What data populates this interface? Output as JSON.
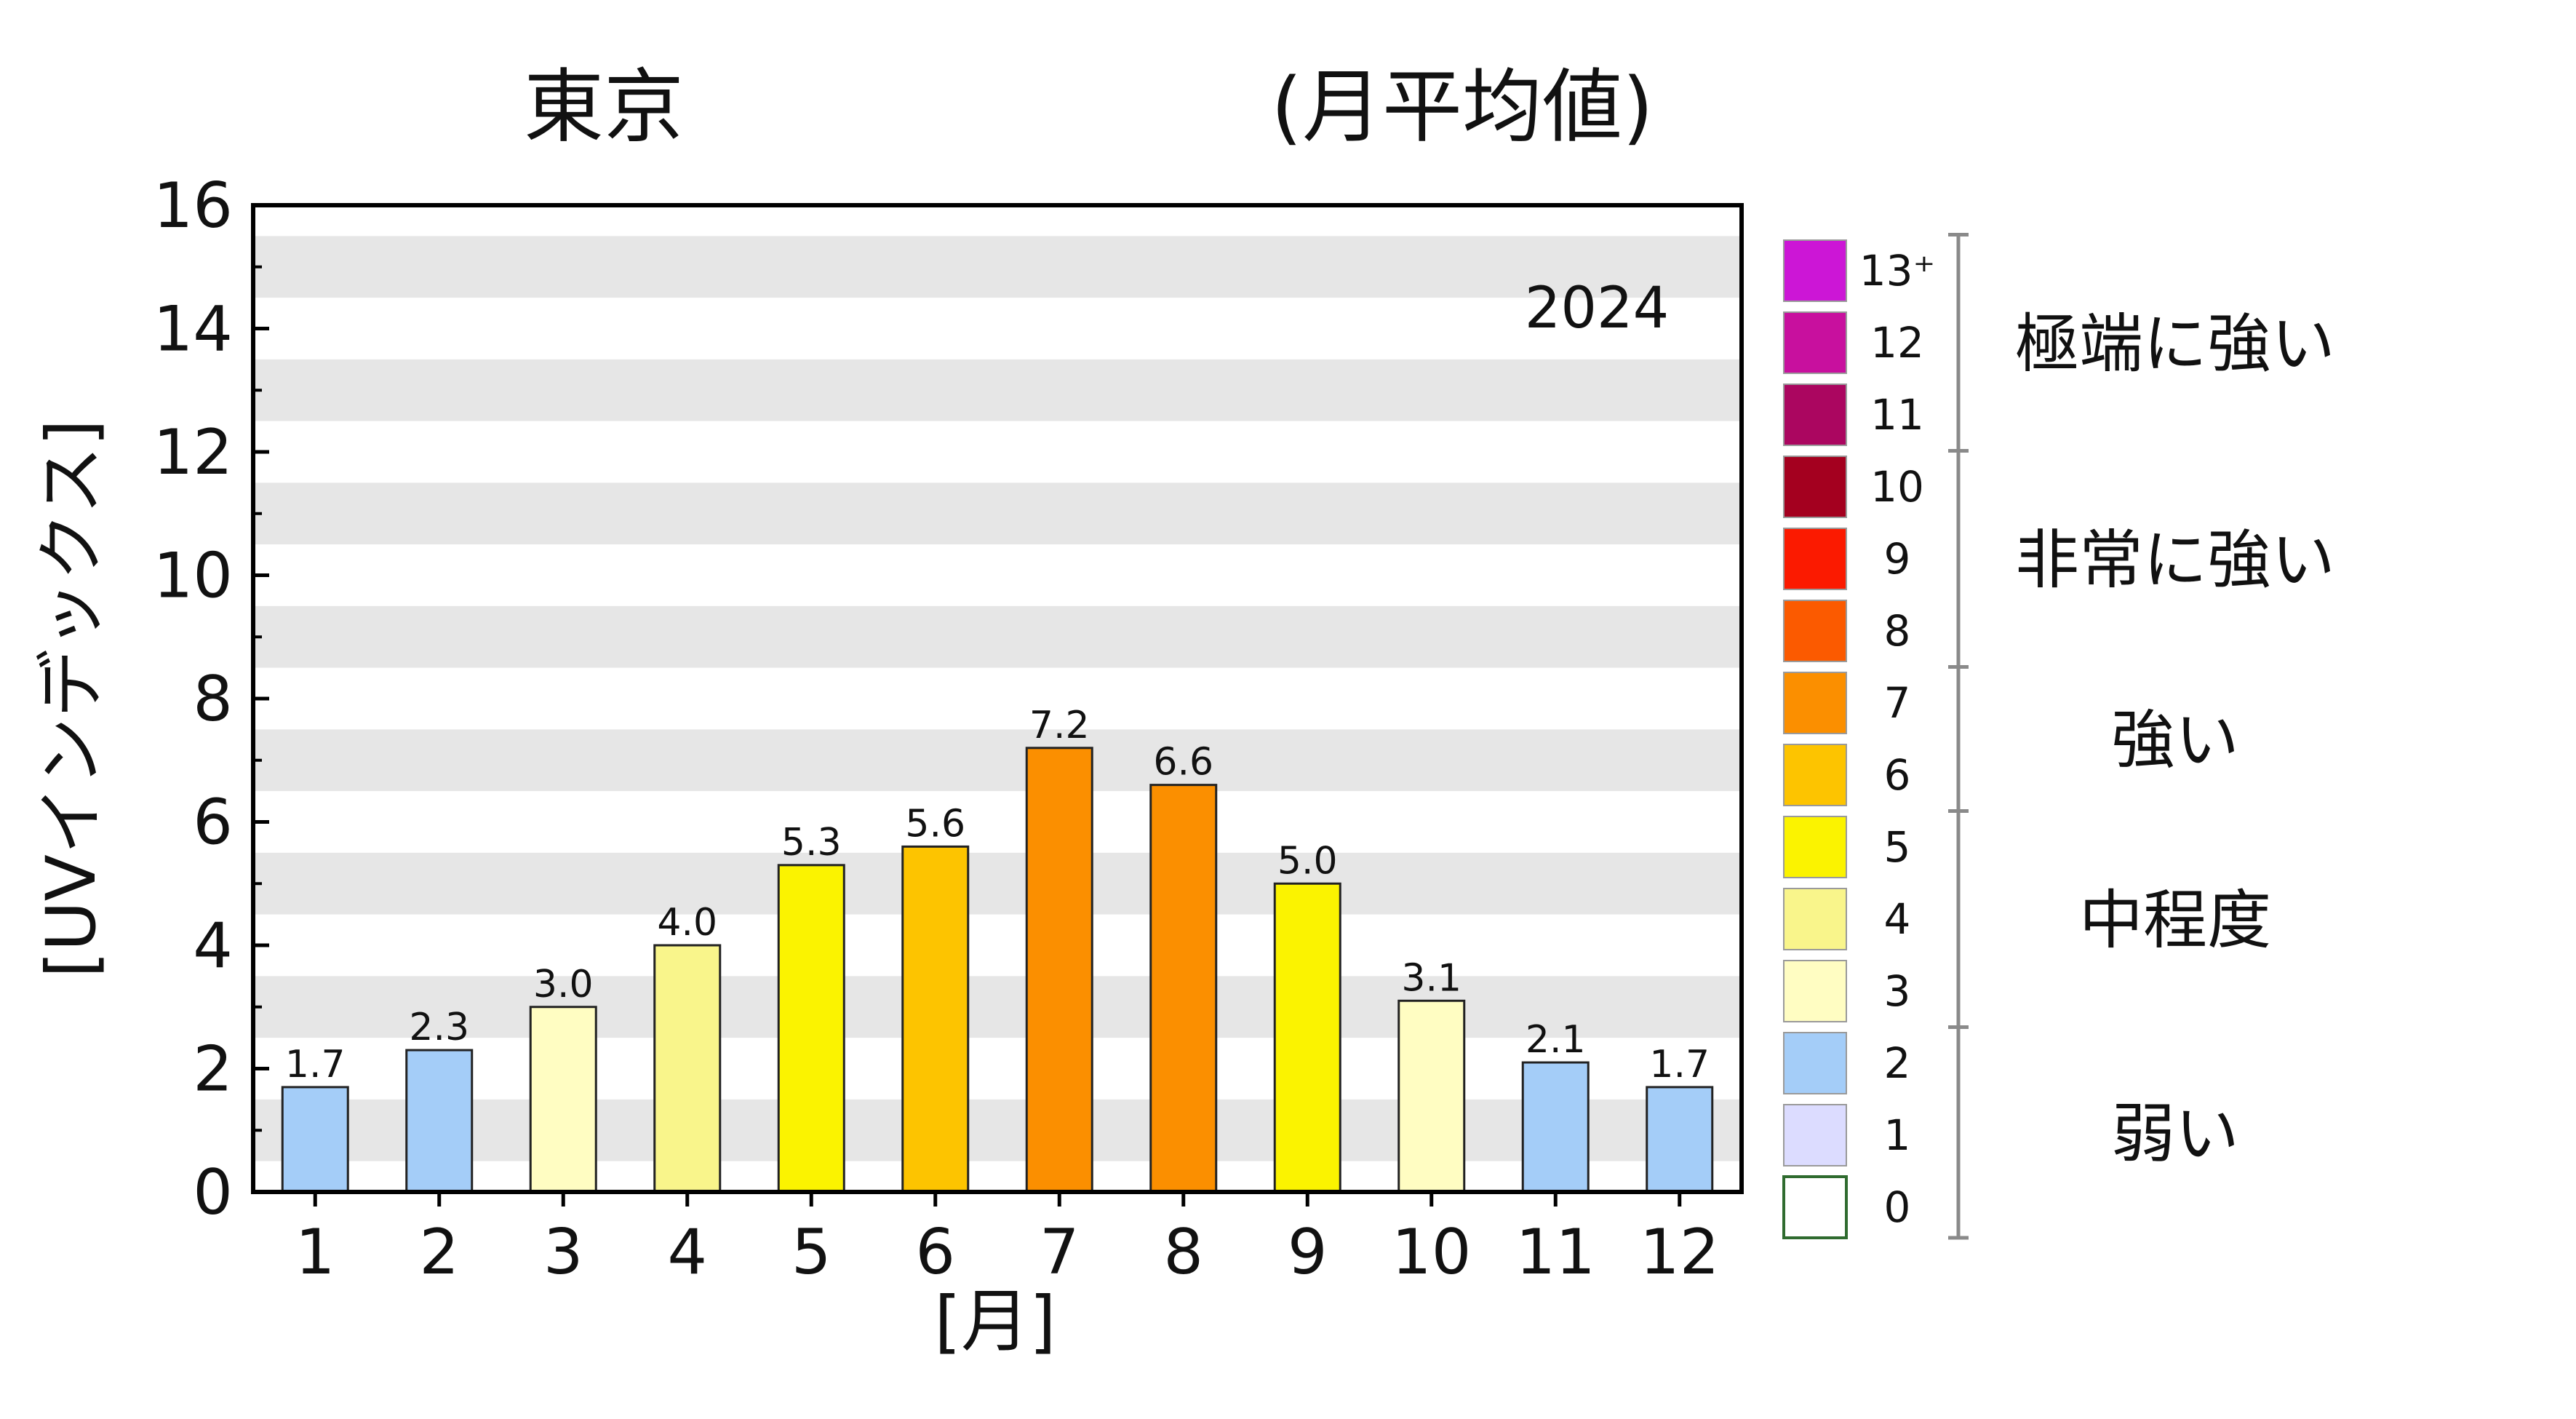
{
  "title": {
    "location": "東京",
    "subtitle": "(月平均値)",
    "year": "2024"
  },
  "chart_data": {
    "type": "bar",
    "title": "東京",
    "subtitle": "(月平均値)",
    "xlabel": "[月]",
    "ylabel": "[UVインデックス]",
    "categories": [
      "1",
      "2",
      "3",
      "4",
      "5",
      "6",
      "7",
      "8",
      "9",
      "10",
      "11",
      "12"
    ],
    "values": [
      1.7,
      2.3,
      3.0,
      4.0,
      5.3,
      5.6,
      7.2,
      6.6,
      5.0,
      3.1,
      2.1,
      1.7
    ],
    "value_labels": [
      "1.7",
      "2.3",
      "3.0",
      "4.0",
      "5.3",
      "5.6",
      "7.2",
      "6.6",
      "5.0",
      "3.1",
      "2.1",
      "1.7"
    ],
    "bar_colors": [
      "#a4cdf8",
      "#a4cdf8",
      "#fffdc2",
      "#f9f58b",
      "#fbf300",
      "#fdc400",
      "#fb8f00",
      "#fb8f00",
      "#fbf300",
      "#fffdc2",
      "#a4cdf8",
      "#a4cdf8"
    ],
    "ylim": [
      0,
      16
    ],
    "yticks": [
      "0",
      "2",
      "4",
      "6",
      "8",
      "10",
      "12",
      "14",
      "16"
    ],
    "grid": "alternating horizontal gray bands",
    "legend_position": "right"
  },
  "legend": {
    "scale": [
      {
        "label": "13⁺",
        "color": "#cc16d6"
      },
      {
        "label": "12",
        "color": "#c8109e"
      },
      {
        "label": "11",
        "color": "#ab0660"
      },
      {
        "label": "10",
        "color": "#a4001f"
      },
      {
        "label": "9",
        "color": "#fb1a00"
      },
      {
        "label": "8",
        "color": "#fb5a00"
      },
      {
        "label": "7",
        "color": "#fb8f00"
      },
      {
        "label": "6",
        "color": "#fdc400"
      },
      {
        "label": "5",
        "color": "#fbf300"
      },
      {
        "label": "4",
        "color": "#f9f58b"
      },
      {
        "label": "3",
        "color": "#fffdc2"
      },
      {
        "label": "2",
        "color": "#a4cdf8"
      },
      {
        "label": "1",
        "color": "#dcdcff"
      },
      {
        "label": "0",
        "color": "#ffffff"
      }
    ],
    "categories": [
      {
        "label": "極端に強い"
      },
      {
        "label": "非常に強い"
      },
      {
        "label": "強い"
      },
      {
        "label": "中程度"
      },
      {
        "label": "弱い"
      }
    ]
  },
  "colors": {
    "band": "#e6e6e6",
    "axis": "#000000",
    "bar_stroke": "#222222",
    "bracket": "#8a8a8a",
    "zero_swatch_border": "#2f6b2f"
  }
}
